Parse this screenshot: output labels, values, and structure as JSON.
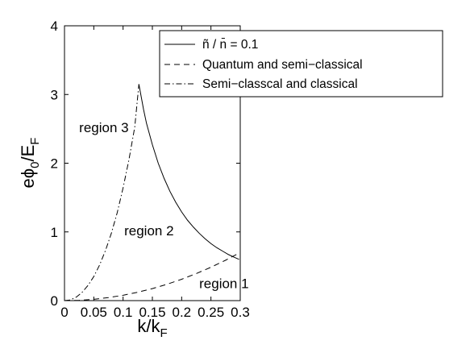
{
  "chart_data": {
    "type": "line",
    "title": "",
    "xlabel": {
      "main": "k/k",
      "sub": "F"
    },
    "ylabel": {
      "main": "eϕ",
      "sub0": "0",
      "slash": "/E",
      "sub1": "F"
    },
    "xlim": [
      0,
      0.3
    ],
    "ylim": [
      0,
      4
    ],
    "xticks": [
      0,
      0.05,
      0.1,
      0.15,
      0.2,
      0.25,
      0.3
    ],
    "xtick_labels": [
      "0",
      "0.05",
      "0.1",
      "0.15",
      "0.2",
      "0.25",
      "0.3"
    ],
    "yticks": [
      0,
      1,
      2,
      3,
      4
    ],
    "ytick_labels": [
      "0",
      "1",
      "2",
      "3",
      "4"
    ],
    "grid": false,
    "legend_position": "top-right",
    "series": [
      {
        "name": "ñ / n̄ = 0.1",
        "style": "solid",
        "x": [
          0.127,
          0.135,
          0.14,
          0.15,
          0.16,
          0.17,
          0.18,
          0.19,
          0.2,
          0.21,
          0.22,
          0.23,
          0.24,
          0.25,
          0.26,
          0.27,
          0.28,
          0.29,
          0.298
        ],
        "y": [
          3.15,
          2.78,
          2.58,
          2.27,
          2.0,
          1.78,
          1.59,
          1.43,
          1.29,
          1.17,
          1.07,
          0.98,
          0.9,
          0.83,
          0.77,
          0.72,
          0.67,
          0.63,
          0.6
        ]
      },
      {
        "name": "Quantum and semi−classical",
        "style": "dashed",
        "x": [
          0,
          0.025,
          0.05,
          0.075,
          0.1,
          0.125,
          0.15,
          0.175,
          0.2,
          0.225,
          0.25,
          0.275,
          0.298
        ],
        "y": [
          0,
          0.005,
          0.019,
          0.044,
          0.078,
          0.122,
          0.175,
          0.238,
          0.311,
          0.394,
          0.486,
          0.588,
          0.691
        ]
      },
      {
        "name": "Semi−classcal and classical",
        "style": "dashdot",
        "x": [
          0,
          0.01,
          0.02,
          0.03,
          0.04,
          0.05,
          0.06,
          0.07,
          0.08,
          0.09,
          0.1,
          0.11,
          0.12,
          0.127
        ],
        "y": [
          0,
          0.01,
          0.05,
          0.12,
          0.22,
          0.35,
          0.52,
          0.73,
          0.98,
          1.28,
          1.64,
          2.05,
          2.53,
          3.15
        ]
      }
    ],
    "annotations": [
      {
        "text": "region 3",
        "x": 0.025,
        "y": 2.45
      },
      {
        "text": "region 2",
        "x": 0.102,
        "y": 0.95
      },
      {
        "text": "region 1",
        "x": 0.23,
        "y": 0.18
      }
    ],
    "legend_entries": [
      {
        "text": "ñ / n̄ = 0.1",
        "style": "solid"
      },
      {
        "text": "Quantum and semi−classical",
        "style": "dashed"
      },
      {
        "text": "Semi−classcal and classical",
        "style": "dashdot"
      }
    ]
  }
}
